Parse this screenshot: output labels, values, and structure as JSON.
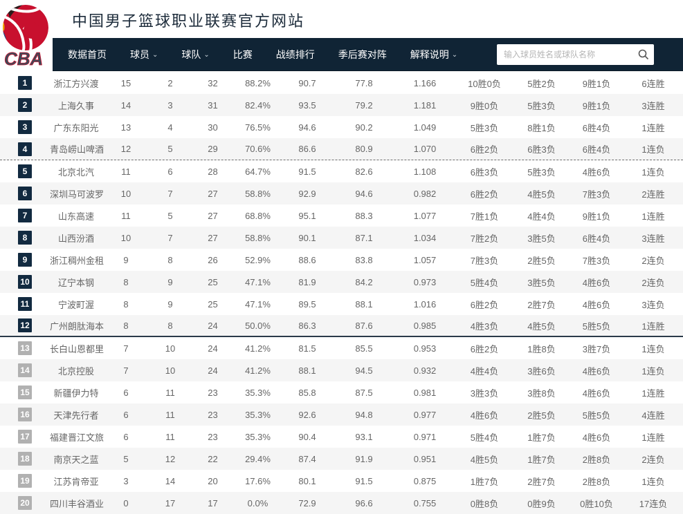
{
  "header": {
    "title": "中国男子篮球职业联赛官方网站",
    "logo_text": "CBA"
  },
  "nav": {
    "items": [
      {
        "label": "数据首页",
        "dropdown": false
      },
      {
        "label": "球员",
        "dropdown": true
      },
      {
        "label": "球队",
        "dropdown": true
      },
      {
        "label": "比赛",
        "dropdown": false
      },
      {
        "label": "战绩排行",
        "dropdown": false
      },
      {
        "label": "季后赛对阵",
        "dropdown": false
      },
      {
        "label": "解释说明",
        "dropdown": true
      }
    ],
    "search": {
      "placeholder": "输入球员姓名或球队名称",
      "value": "",
      "icon": "search-icon"
    }
  },
  "colors": {
    "nav_background": "#102435",
    "rank_badge_dark": "#122a40",
    "rank_badge_gray": "#b1b1b1",
    "row_stripe": "#f5f5f5",
    "logo_red": "#c8102e",
    "logo_blue": "#1d4f91",
    "logo_yellow": "#f2a900"
  },
  "table": {
    "dark_badge_through_rank": 12,
    "dashed_line_after_rank": 4,
    "solid_line_after_rank": 12,
    "rows": [
      {
        "rank": "1",
        "team": "浙江方兴渡",
        "values": [
          "15",
          "2",
          "32",
          "88.2%",
          "90.7",
          "77.8",
          "1.166",
          "10胜0负",
          "5胜2负",
          "9胜1负",
          "6连胜"
        ]
      },
      {
        "rank": "2",
        "team": "上海久事",
        "values": [
          "14",
          "3",
          "31",
          "82.4%",
          "93.5",
          "79.2",
          "1.181",
          "9胜0负",
          "5胜3负",
          "9胜1负",
          "3连胜"
        ]
      },
      {
        "rank": "3",
        "team": "广东东阳光",
        "values": [
          "13",
          "4",
          "30",
          "76.5%",
          "94.6",
          "90.2",
          "1.049",
          "5胜3负",
          "8胜1负",
          "6胜4负",
          "1连胜"
        ]
      },
      {
        "rank": "4",
        "team": "青岛崂山啤酒",
        "values": [
          "12",
          "5",
          "29",
          "70.6%",
          "86.6",
          "80.9",
          "1.070",
          "6胜2负",
          "6胜3负",
          "6胜4负",
          "1连负"
        ]
      },
      {
        "rank": "5",
        "team": "北京北汽",
        "values": [
          "11",
          "6",
          "28",
          "64.7%",
          "91.5",
          "82.6",
          "1.108",
          "6胜3负",
          "5胜3负",
          "4胜6负",
          "1连负"
        ]
      },
      {
        "rank": "6",
        "team": "深圳马可波罗",
        "values": [
          "10",
          "7",
          "27",
          "58.8%",
          "92.9",
          "94.6",
          "0.982",
          "6胜2负",
          "4胜5负",
          "7胜3负",
          "2连胜"
        ]
      },
      {
        "rank": "7",
        "team": "山东高速",
        "values": [
          "11",
          "5",
          "27",
          "68.8%",
          "95.1",
          "88.3",
          "1.077",
          "7胜1负",
          "4胜4负",
          "9胜1负",
          "1连胜"
        ]
      },
      {
        "rank": "8",
        "team": "山西汾酒",
        "values": [
          "10",
          "7",
          "27",
          "58.8%",
          "90.1",
          "87.1",
          "1.034",
          "7胜2负",
          "3胜5负",
          "6胜4负",
          "3连胜"
        ]
      },
      {
        "rank": "9",
        "team": "浙江稠州金租",
        "values": [
          "9",
          "8",
          "26",
          "52.9%",
          "88.6",
          "83.8",
          "1.057",
          "7胜3负",
          "2胜5负",
          "7胜3负",
          "2连负"
        ]
      },
      {
        "rank": "10",
        "team": "辽宁本钢",
        "values": [
          "8",
          "9",
          "25",
          "47.1%",
          "81.9",
          "84.2",
          "0.973",
          "5胜4负",
          "3胜5负",
          "4胜6负",
          "2连负"
        ]
      },
      {
        "rank": "11",
        "team": "宁波町渥",
        "values": [
          "8",
          "9",
          "25",
          "47.1%",
          "89.5",
          "88.1",
          "1.016",
          "6胜2负",
          "2胜7负",
          "4胜6负",
          "3连负"
        ]
      },
      {
        "rank": "12",
        "team": "广州朗肽海本",
        "values": [
          "8",
          "8",
          "24",
          "50.0%",
          "86.3",
          "87.6",
          "0.985",
          "4胜3负",
          "4胜5负",
          "5胜5负",
          "1连胜"
        ]
      },
      {
        "rank": "13",
        "team": "长白山恩都里",
        "values": [
          "7",
          "10",
          "24",
          "41.2%",
          "81.5",
          "85.5",
          "0.953",
          "6胜2负",
          "1胜8负",
          "3胜7负",
          "1连负"
        ]
      },
      {
        "rank": "14",
        "team": "北京控股",
        "values": [
          "7",
          "10",
          "24",
          "41.2%",
          "88.1",
          "94.5",
          "0.932",
          "4胜4负",
          "3胜6负",
          "4胜6负",
          "1连负"
        ]
      },
      {
        "rank": "15",
        "team": "新疆伊力特",
        "values": [
          "6",
          "11",
          "23",
          "35.3%",
          "85.8",
          "87.5",
          "0.981",
          "3胜3负",
          "3胜8负",
          "4胜6负",
          "1连胜"
        ]
      },
      {
        "rank": "16",
        "team": "天津先行者",
        "values": [
          "6",
          "11",
          "23",
          "35.3%",
          "92.6",
          "94.8",
          "0.977",
          "4胜6负",
          "2胜5负",
          "5胜5负",
          "4连胜"
        ]
      },
      {
        "rank": "17",
        "team": "福建晋江文旅",
        "values": [
          "6",
          "11",
          "23",
          "35.3%",
          "90.4",
          "93.1",
          "0.971",
          "5胜4负",
          "1胜7负",
          "4胜6负",
          "1连胜"
        ]
      },
      {
        "rank": "18",
        "team": "南京天之蓝",
        "values": [
          "5",
          "12",
          "22",
          "29.4%",
          "87.4",
          "91.9",
          "0.951",
          "4胜5负",
          "1胜7负",
          "2胜8负",
          "2连负"
        ]
      },
      {
        "rank": "19",
        "team": "江苏肯帝亚",
        "values": [
          "3",
          "14",
          "20",
          "17.6%",
          "80.1",
          "91.5",
          "0.875",
          "1胜7负",
          "2胜7负",
          "2胜8负",
          "1连负"
        ]
      },
      {
        "rank": "20",
        "team": "四川丰谷酒业",
        "values": [
          "0",
          "17",
          "17",
          "0.0%",
          "72.9",
          "96.6",
          "0.755",
          "0胜8负",
          "0胜9负",
          "0胜10负",
          "17连负"
        ]
      }
    ]
  }
}
